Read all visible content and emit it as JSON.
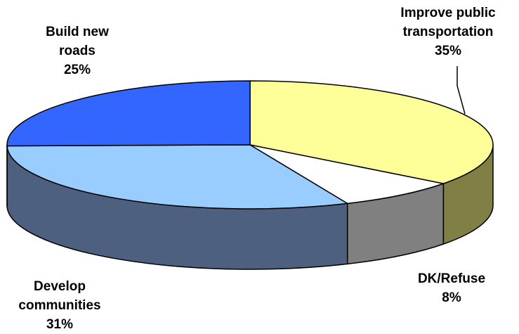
{
  "chart_data": {
    "type": "pie",
    "style": "3d",
    "slices": [
      {
        "label_lines": [
          "Improve public",
          "transportation"
        ],
        "value": 35,
        "value_label": "35%",
        "color": "#FFFF99",
        "side_color": "#808046"
      },
      {
        "label_lines": [
          "DK/Refuse"
        ],
        "value": 8,
        "value_label": "8%",
        "color": "#FFFFFF",
        "side_color": "#808080"
      },
      {
        "label_lines": [
          "Develop",
          "communities"
        ],
        "value": 31,
        "value_label": "31%",
        "color": "#99CCFF",
        "side_color": "#4D6080"
      },
      {
        "label_lines": [
          "Build new",
          "roads"
        ],
        "value": 25,
        "value_label": "25%",
        "color": "#3366FF",
        "side_color": "#1A3380"
      }
    ]
  }
}
